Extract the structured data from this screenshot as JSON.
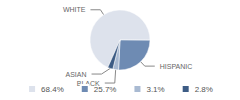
{
  "chart_data": {
    "type": "pie",
    "categories": [
      "WHITE",
      "HISPANIC",
      "BLACK",
      "ASIAN"
    ],
    "values": [
      68.4,
      25.7,
      3.1,
      2.8
    ],
    "value_labels": [
      "68.4%",
      "25.7%",
      "3.1%",
      "2.8%"
    ],
    "colors": [
      "#dde2ec",
      "#6e8bb3",
      "#a9bad2",
      "#3d5c85"
    ],
    "legend": "bottom"
  }
}
